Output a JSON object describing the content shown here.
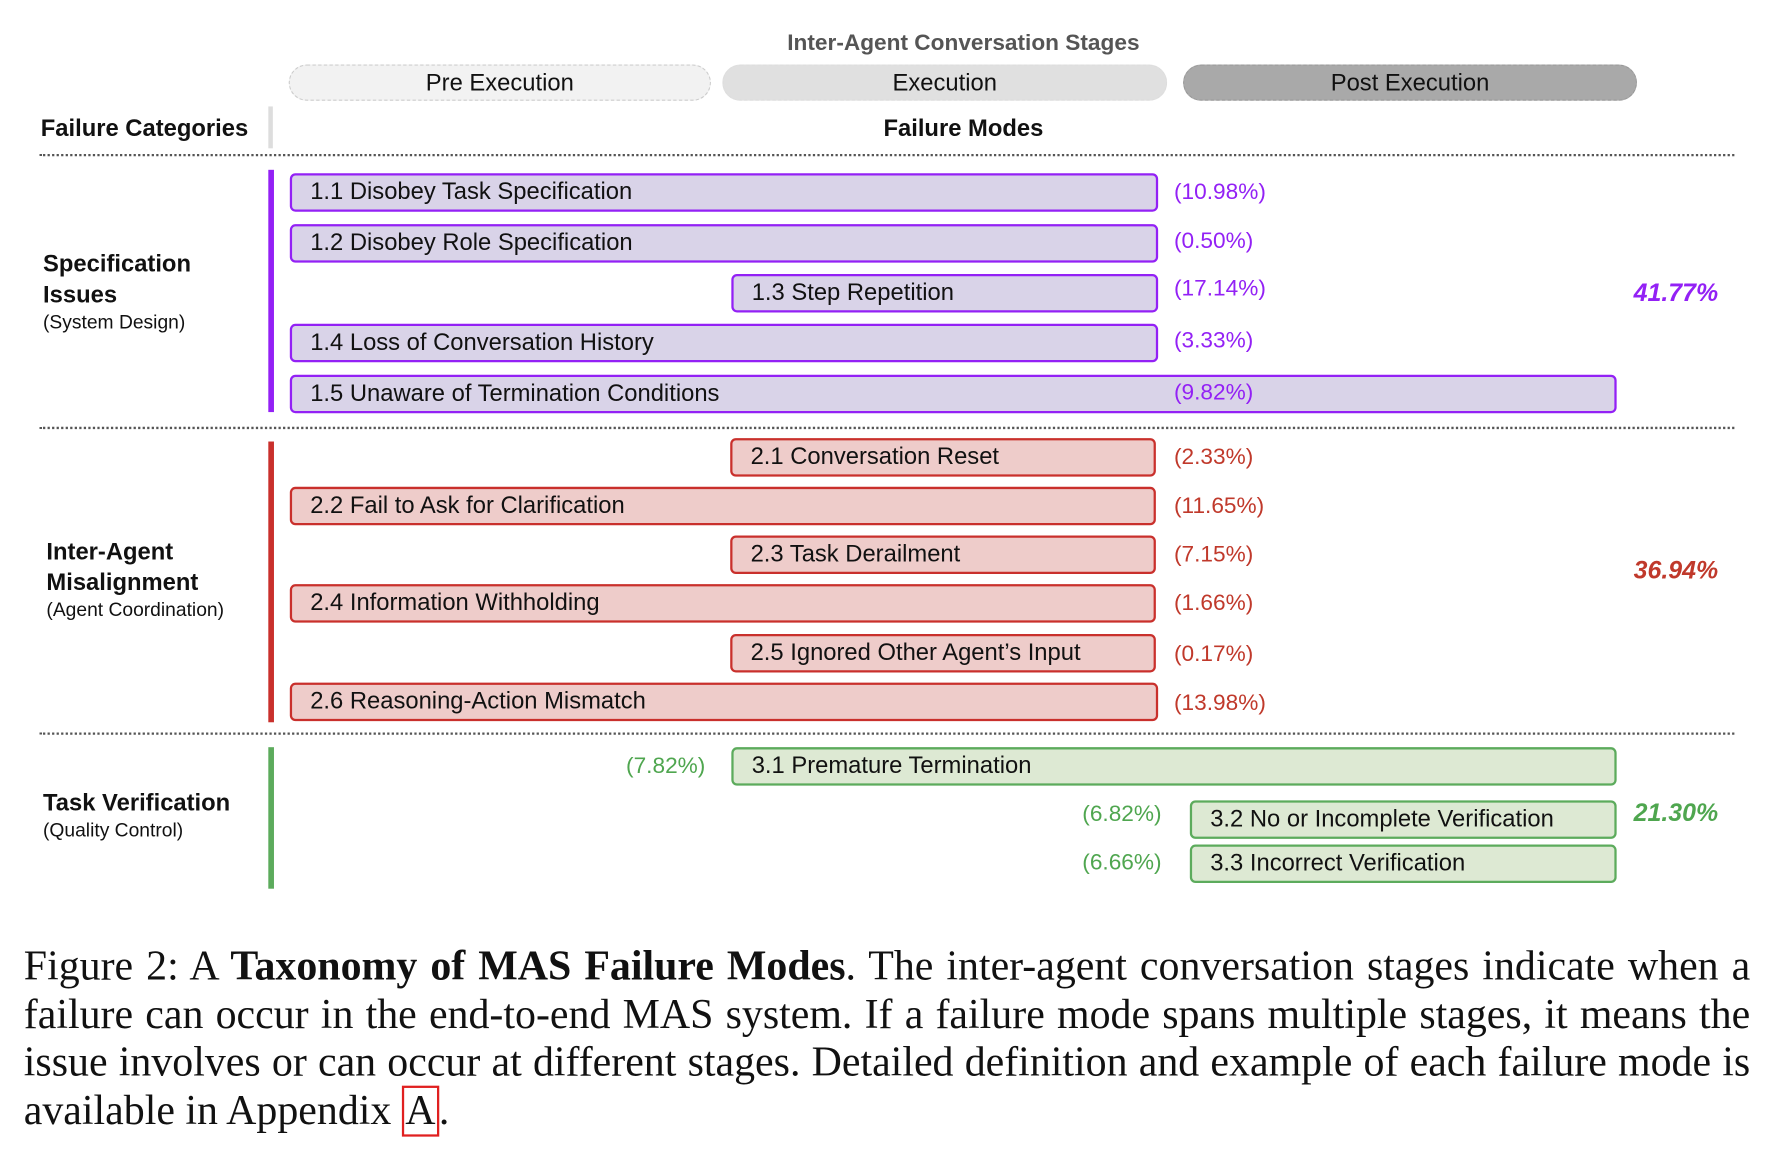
{
  "stages_title": "Inter-Agent Conversation Stages",
  "stages": [
    "Pre Execution",
    "Execution",
    "Post Execution"
  ],
  "headers": {
    "categories": "Failure Categories",
    "modes": "Failure Modes"
  },
  "colors": {
    "specification": "#9321f5",
    "misalignment": "#c9302c",
    "verification": "#5cab5c"
  },
  "categories": [
    {
      "name_line1": "Specification",
      "name_line2": "Issues",
      "sub": "(System Design)",
      "total": "41.77%",
      "modes": [
        {
          "label": "1.1 Disobey Task Specification",
          "pct": "(10.98%)"
        },
        {
          "label": "1.2 Disobey Role Specification",
          "pct": "(0.50%)"
        },
        {
          "label": "1.3 Step Repetition",
          "pct": "(17.14%)"
        },
        {
          "label": "1.4 Loss of Conversation History",
          "pct": "(3.33%)"
        },
        {
          "label": "1.5 Unaware of Termination Conditions",
          "pct": "(9.82%)"
        }
      ]
    },
    {
      "name_line1": "Inter-Agent",
      "name_line2": "Misalignment",
      "sub": "(Agent Coordination)",
      "total": "36.94%",
      "modes": [
        {
          "label": "2.1 Conversation Reset",
          "pct": "(2.33%)"
        },
        {
          "label": "2.2 Fail to Ask for Clarification",
          "pct": "(11.65%)"
        },
        {
          "label": "2.3 Task Derailment",
          "pct": "(7.15%)"
        },
        {
          "label": "2.4 Information Withholding",
          "pct": "(1.66%)"
        },
        {
          "label": "2.5 Ignored Other Agent’s Input",
          "pct": "(0.17%)"
        },
        {
          "label": "2.6 Reasoning-Action Mismatch",
          "pct": "(13.98%)"
        }
      ]
    },
    {
      "name_line1": "Task Verification",
      "sub": "(Quality Control)",
      "total": "21.30%",
      "modes": [
        {
          "label": "3.1  Premature Termination",
          "pct": "(7.82%)"
        },
        {
          "label": "3.2 No or Incomplete Verification",
          "pct": "(6.82%)"
        },
        {
          "label": "3.3 Incorrect Verification",
          "pct": "(6.66%)"
        }
      ]
    }
  ],
  "caption": {
    "prefix": "Figure 2: A ",
    "bold": "Taxonomy of MAS Failure Modes",
    "body": ". The inter-agent conversation stages indicate when a failure can occur in the end-to-end MAS system. If a failure mode spans multiple stages, it means the issue involves or can occur at different stages.  Detailed definition and example of each failure mode is available in Appendix ",
    "link": "A",
    "suffix": "."
  }
}
